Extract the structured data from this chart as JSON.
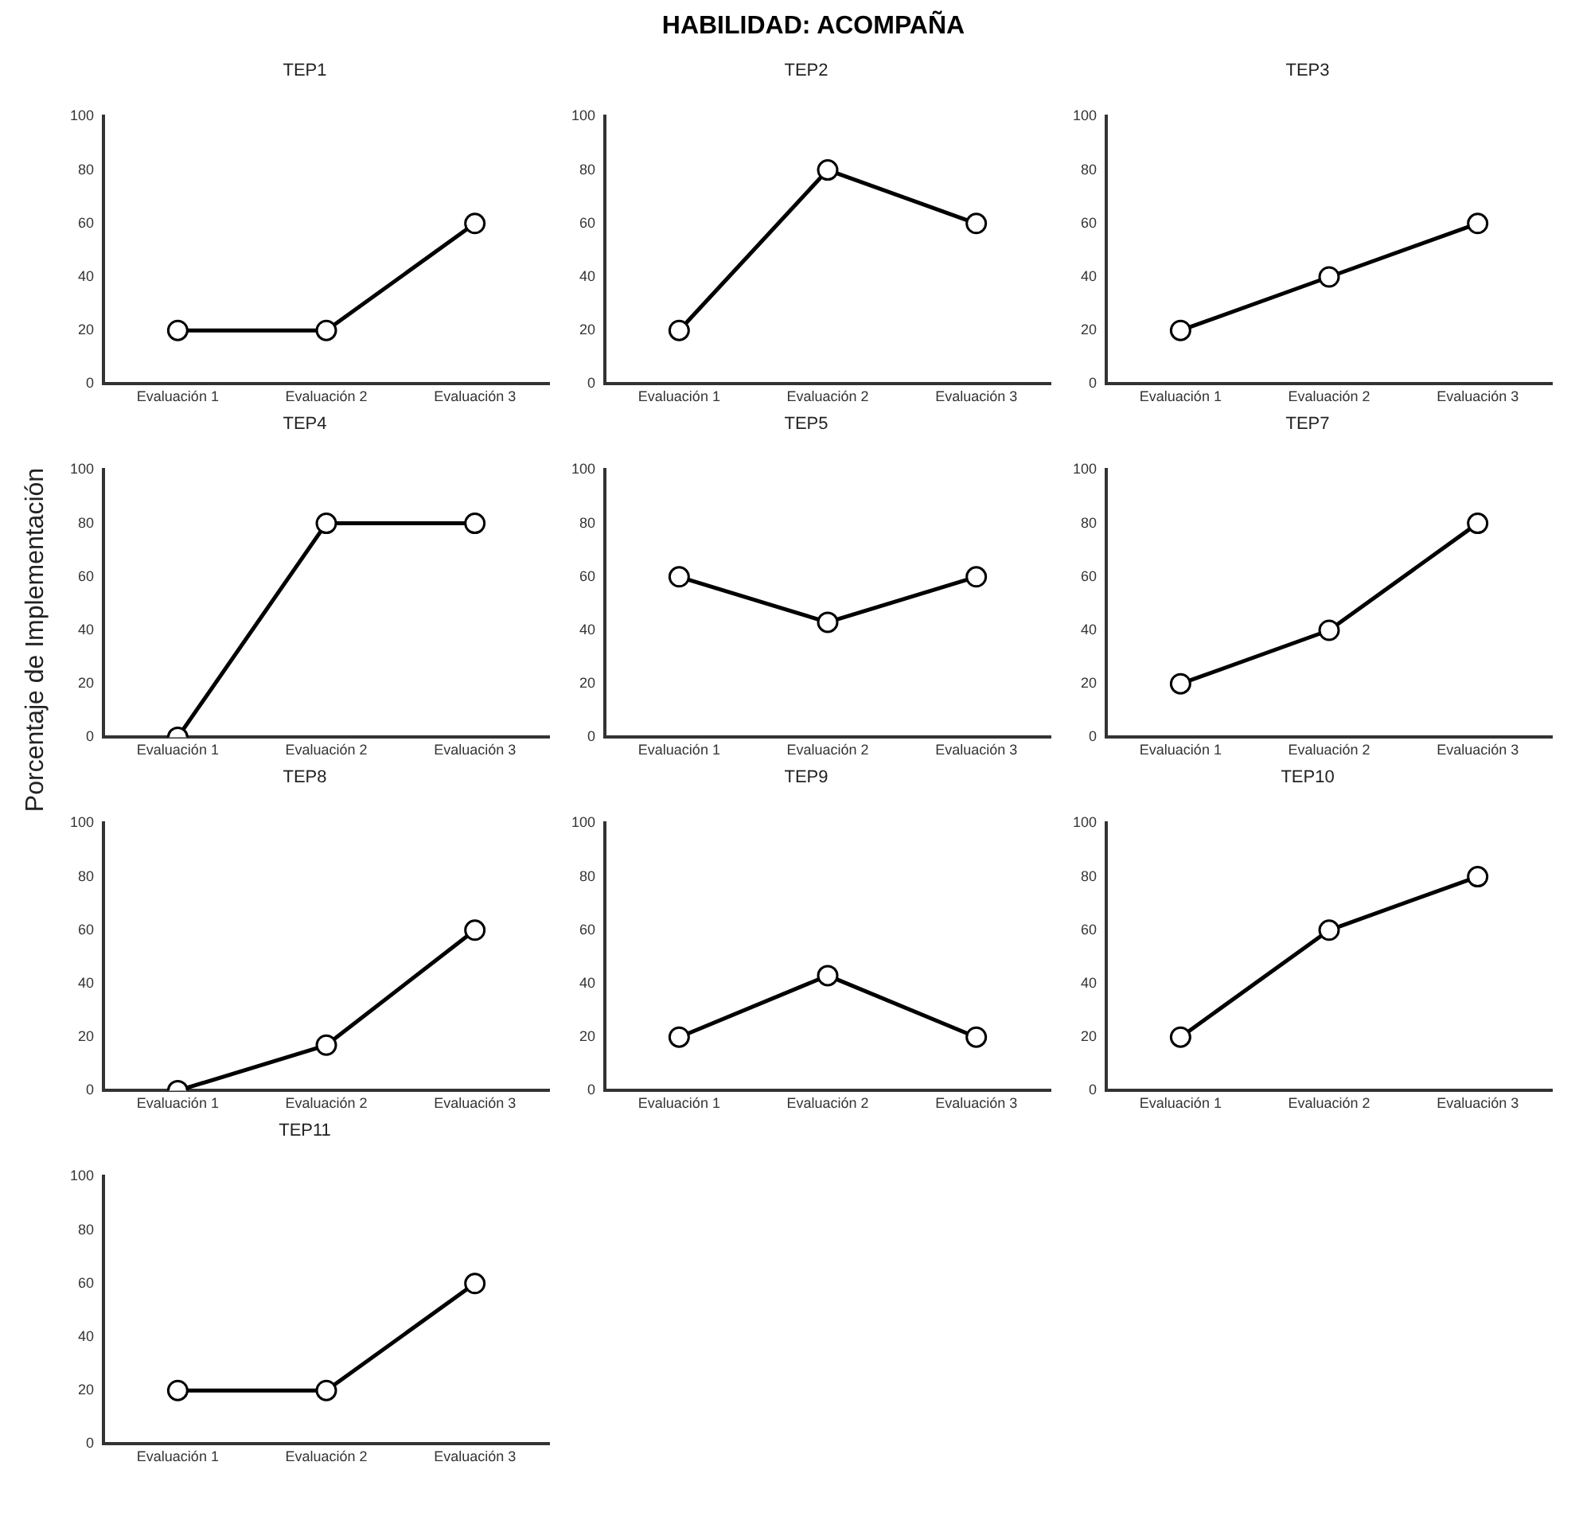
{
  "chart_data": [
    {
      "type": "line",
      "title": "TEP1",
      "annotations": [
        "HABILIDAD: ACOMPAÑA"
      ],
      "categories": [
        "Evaluación 1",
        "Evaluación 2",
        "Evaluación 3"
      ],
      "values": [
        20,
        20,
        60
      ],
      "color": "#000000",
      "ylim": [
        0,
        100
      ],
      "yticks": [
        0,
        20,
        40,
        60,
        80,
        100
      ],
      "grid": false,
      "marker": "circle"
    },
    {
      "type": "line",
      "title": "TEP2",
      "categories": [
        "Evaluación 1",
        "Evaluación 2",
        "Evaluación 3"
      ],
      "values": [
        20,
        80,
        60
      ],
      "color": "#000000",
      "ylim": [
        0,
        100
      ],
      "yticks": [
        0,
        20,
        40,
        60,
        80,
        100
      ],
      "grid": false,
      "marker": "circle"
    },
    {
      "type": "line",
      "title": "TEP3",
      "categories": [
        "Evaluación 1",
        "Evaluación 2",
        "Evaluación 3"
      ],
      "values": [
        20,
        40,
        60
      ],
      "color": "#000000",
      "ylim": [
        0,
        100
      ],
      "yticks": [
        0,
        20,
        40,
        60,
        80,
        100
      ],
      "grid": false,
      "marker": "circle"
    },
    {
      "type": "line",
      "title": "TEP4",
      "ylabel": "Porcentaje de Implementación",
      "categories": [
        "Evaluación 1",
        "Evaluación 2",
        "Evaluación 3"
      ],
      "values": [
        0,
        80,
        80
      ],
      "color": "#000000",
      "ylim": [
        0,
        100
      ],
      "yticks": [
        0,
        20,
        40,
        60,
        80,
        100
      ],
      "grid": false,
      "marker": "circle"
    },
    {
      "type": "line",
      "title": "TEP5",
      "categories": [
        "Evaluación 1",
        "Evaluación 2",
        "Evaluación 3"
      ],
      "values": [
        60,
        43,
        60
      ],
      "color": "#000000",
      "ylim": [
        0,
        100
      ],
      "yticks": [
        0,
        20,
        40,
        60,
        80,
        100
      ],
      "grid": false,
      "marker": "circle"
    },
    {
      "type": "line",
      "title": "TEP7",
      "categories": [
        "Evaluación 1",
        "Evaluación 2",
        "Evaluación 3"
      ],
      "values": [
        20,
        40,
        80
      ],
      "color": "#000000",
      "ylim": [
        0,
        100
      ],
      "yticks": [
        0,
        20,
        40,
        60,
        80,
        100
      ],
      "grid": false,
      "marker": "circle"
    },
    {
      "type": "line",
      "title": "TEP8",
      "categories": [
        "Evaluación 1",
        "Evaluación 2",
        "Evaluación 3"
      ],
      "values": [
        0,
        17,
        60
      ],
      "color": "#000000",
      "ylim": [
        0,
        100
      ],
      "yticks": [
        0,
        20,
        40,
        60,
        80,
        100
      ],
      "grid": false,
      "marker": "circle"
    },
    {
      "type": "line",
      "title": "TEP9",
      "categories": [
        "Evaluación 1",
        "Evaluación 2",
        "Evaluación 3"
      ],
      "values": [
        20,
        43,
        20
      ],
      "color": "#000000",
      "ylim": [
        0,
        100
      ],
      "yticks": [
        0,
        20,
        40,
        60,
        80,
        100
      ],
      "grid": false,
      "marker": "circle"
    },
    {
      "type": "line",
      "title": "TEP10",
      "categories": [
        "Evaluación 1",
        "Evaluación 2",
        "Evaluación 3"
      ],
      "values": [
        20,
        60,
        80
      ],
      "color": "#000000",
      "ylim": [
        0,
        100
      ],
      "yticks": [
        0,
        20,
        40,
        60,
        80,
        100
      ],
      "grid": false,
      "marker": "circle"
    },
    {
      "type": "line",
      "title": "TEP11",
      "categories": [
        "Evaluación 1",
        "Evaluación 2",
        "Evaluación 3"
      ],
      "values": [
        20,
        20,
        60
      ],
      "color": "#000000",
      "ylim": [
        0,
        100
      ],
      "yticks": [
        0,
        20,
        40,
        60,
        80,
        100
      ],
      "grid": false,
      "marker": "circle"
    }
  ]
}
